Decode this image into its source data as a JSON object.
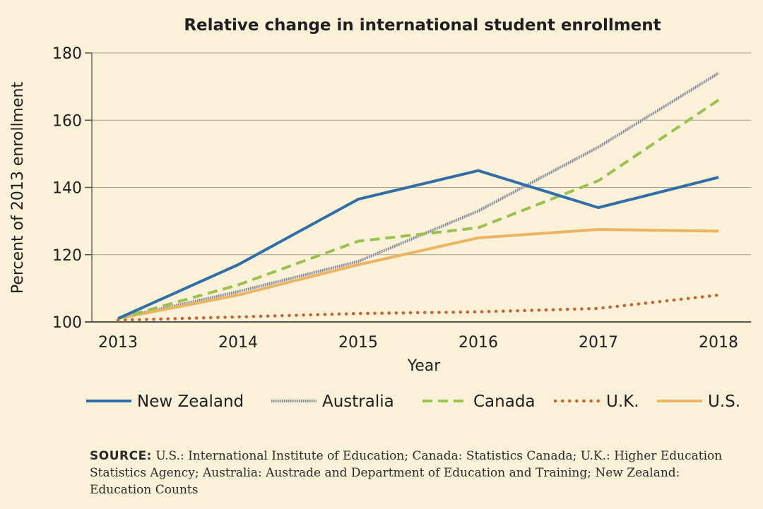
{
  "chart_data": {
    "type": "line",
    "title": "Relative change in international student enrollment",
    "xlabel": "Year",
    "ylabel": "Percent of 2013 enrollment",
    "categories": [
      "2013",
      "2014",
      "2015",
      "2016",
      "2017",
      "2018"
    ],
    "ylim": [
      100,
      180
    ],
    "yticks": [
      "100",
      "120",
      "140",
      "160",
      "180"
    ],
    "grid": true,
    "legend_position": "bottom",
    "series": [
      {
        "name": "New Zealand",
        "values": [
          101,
          117,
          136.5,
          145,
          134,
          143
        ],
        "color": "#2f6ea6",
        "style": "solid"
      },
      {
        "name": "Australia",
        "values": [
          101,
          109,
          118,
          133,
          152,
          174
        ],
        "color": "#9e9e9e",
        "style": "hatched"
      },
      {
        "name": "Canada",
        "values": [
          101,
          111,
          124,
          128,
          142,
          166
        ],
        "color": "#9bc24f",
        "style": "dashed"
      },
      {
        "name": "U.K.",
        "values": [
          100.5,
          101.5,
          102.5,
          103,
          104,
          108
        ],
        "color": "#c9622d",
        "style": "dotted"
      },
      {
        "name": "U.S.",
        "values": [
          101,
          108,
          117,
          125,
          127.5,
          127
        ],
        "color": "#eab461",
        "style": "solid"
      }
    ]
  },
  "source": {
    "label": "SOURCE:",
    "text": "U.S.: International Institute of Education; Canada: Statistics Canada; U.K.: Higher Education Statistics Agency; Australia: Austrade and Department of Education and Training; New Zealand: Education Counts"
  }
}
